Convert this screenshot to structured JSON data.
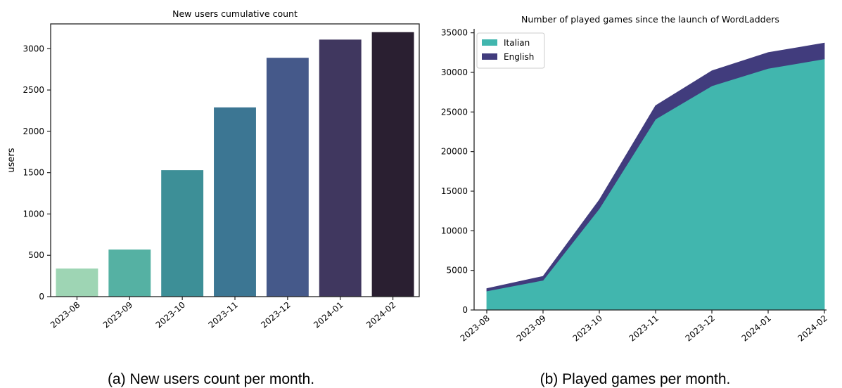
{
  "chart_data": [
    {
      "type": "bar",
      "title": "New users cumulative count",
      "xlabel": "",
      "ylabel": "users",
      "categories": [
        "2023-08",
        "2023-09",
        "2023-10",
        "2023-11",
        "2023-12",
        "2024-01",
        "2024-02"
      ],
      "values": [
        340,
        570,
        1530,
        2290,
        2890,
        3110,
        3200
      ],
      "colors": [
        "#9ed5b4",
        "#55b1a3",
        "#3d8f97",
        "#3c7693",
        "#45598a",
        "#40375f",
        "#2a1f31"
      ],
      "ylim": [
        0,
        3300
      ],
      "yticks": [
        0,
        500,
        1000,
        1500,
        2000,
        2500,
        3000
      ],
      "grid": false,
      "caption": "(a) New users count per month."
    },
    {
      "type": "area",
      "stacked": true,
      "title": "Number of played games since the launch of WordLadders",
      "xlabel": "",
      "ylabel": "",
      "x": [
        "2023-08",
        "2023-09",
        "2023-10",
        "2023-11",
        "2023-12",
        "2024-01",
        "2024-02"
      ],
      "series": [
        {
          "name": "Italian",
          "color": "#41b6ae",
          "values": [
            2400,
            3750,
            12800,
            24100,
            28300,
            30500,
            31700
          ]
        },
        {
          "name": "English",
          "color": "#413c7d",
          "values": [
            300,
            500,
            1100,
            1700,
            1900,
            2000,
            2000
          ]
        }
      ],
      "ylim": [
        0,
        35500
      ],
      "yticks": [
        0,
        5000,
        10000,
        15000,
        20000,
        25000,
        30000,
        35000
      ],
      "legend": "top-left",
      "grid": false,
      "caption": "(b) Played games per month."
    }
  ]
}
